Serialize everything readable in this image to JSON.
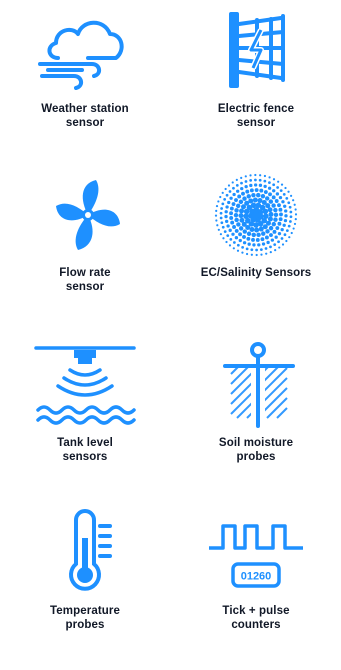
{
  "colors": {
    "accent": "#1e90ff",
    "text": "#111827",
    "background": "#ffffff"
  },
  "sensors": [
    {
      "icon": "weather-cloud-wind-icon",
      "line1": "Weather station",
      "line2": "sensor"
    },
    {
      "icon": "electric-fence-icon",
      "line1": "Electric fence",
      "line2": "sensor"
    },
    {
      "icon": "fan-flow-icon",
      "line1": "Flow rate",
      "line2": "sensor"
    },
    {
      "icon": "dot-sphere-icon",
      "line1": "EC/Salinity Sensors",
      "line2": ""
    },
    {
      "icon": "tank-level-icon",
      "line1": "Tank level",
      "line2": "sensors"
    },
    {
      "icon": "soil-probe-icon",
      "line1": "Soil moisture",
      "line2": "probes"
    },
    {
      "icon": "thermometer-icon",
      "line1": "Temperature",
      "line2": "probes"
    },
    {
      "icon": "pulse-counter-icon",
      "line1": "Tick + pulse",
      "line2": "counters",
      "counter_text": "01260"
    }
  ]
}
